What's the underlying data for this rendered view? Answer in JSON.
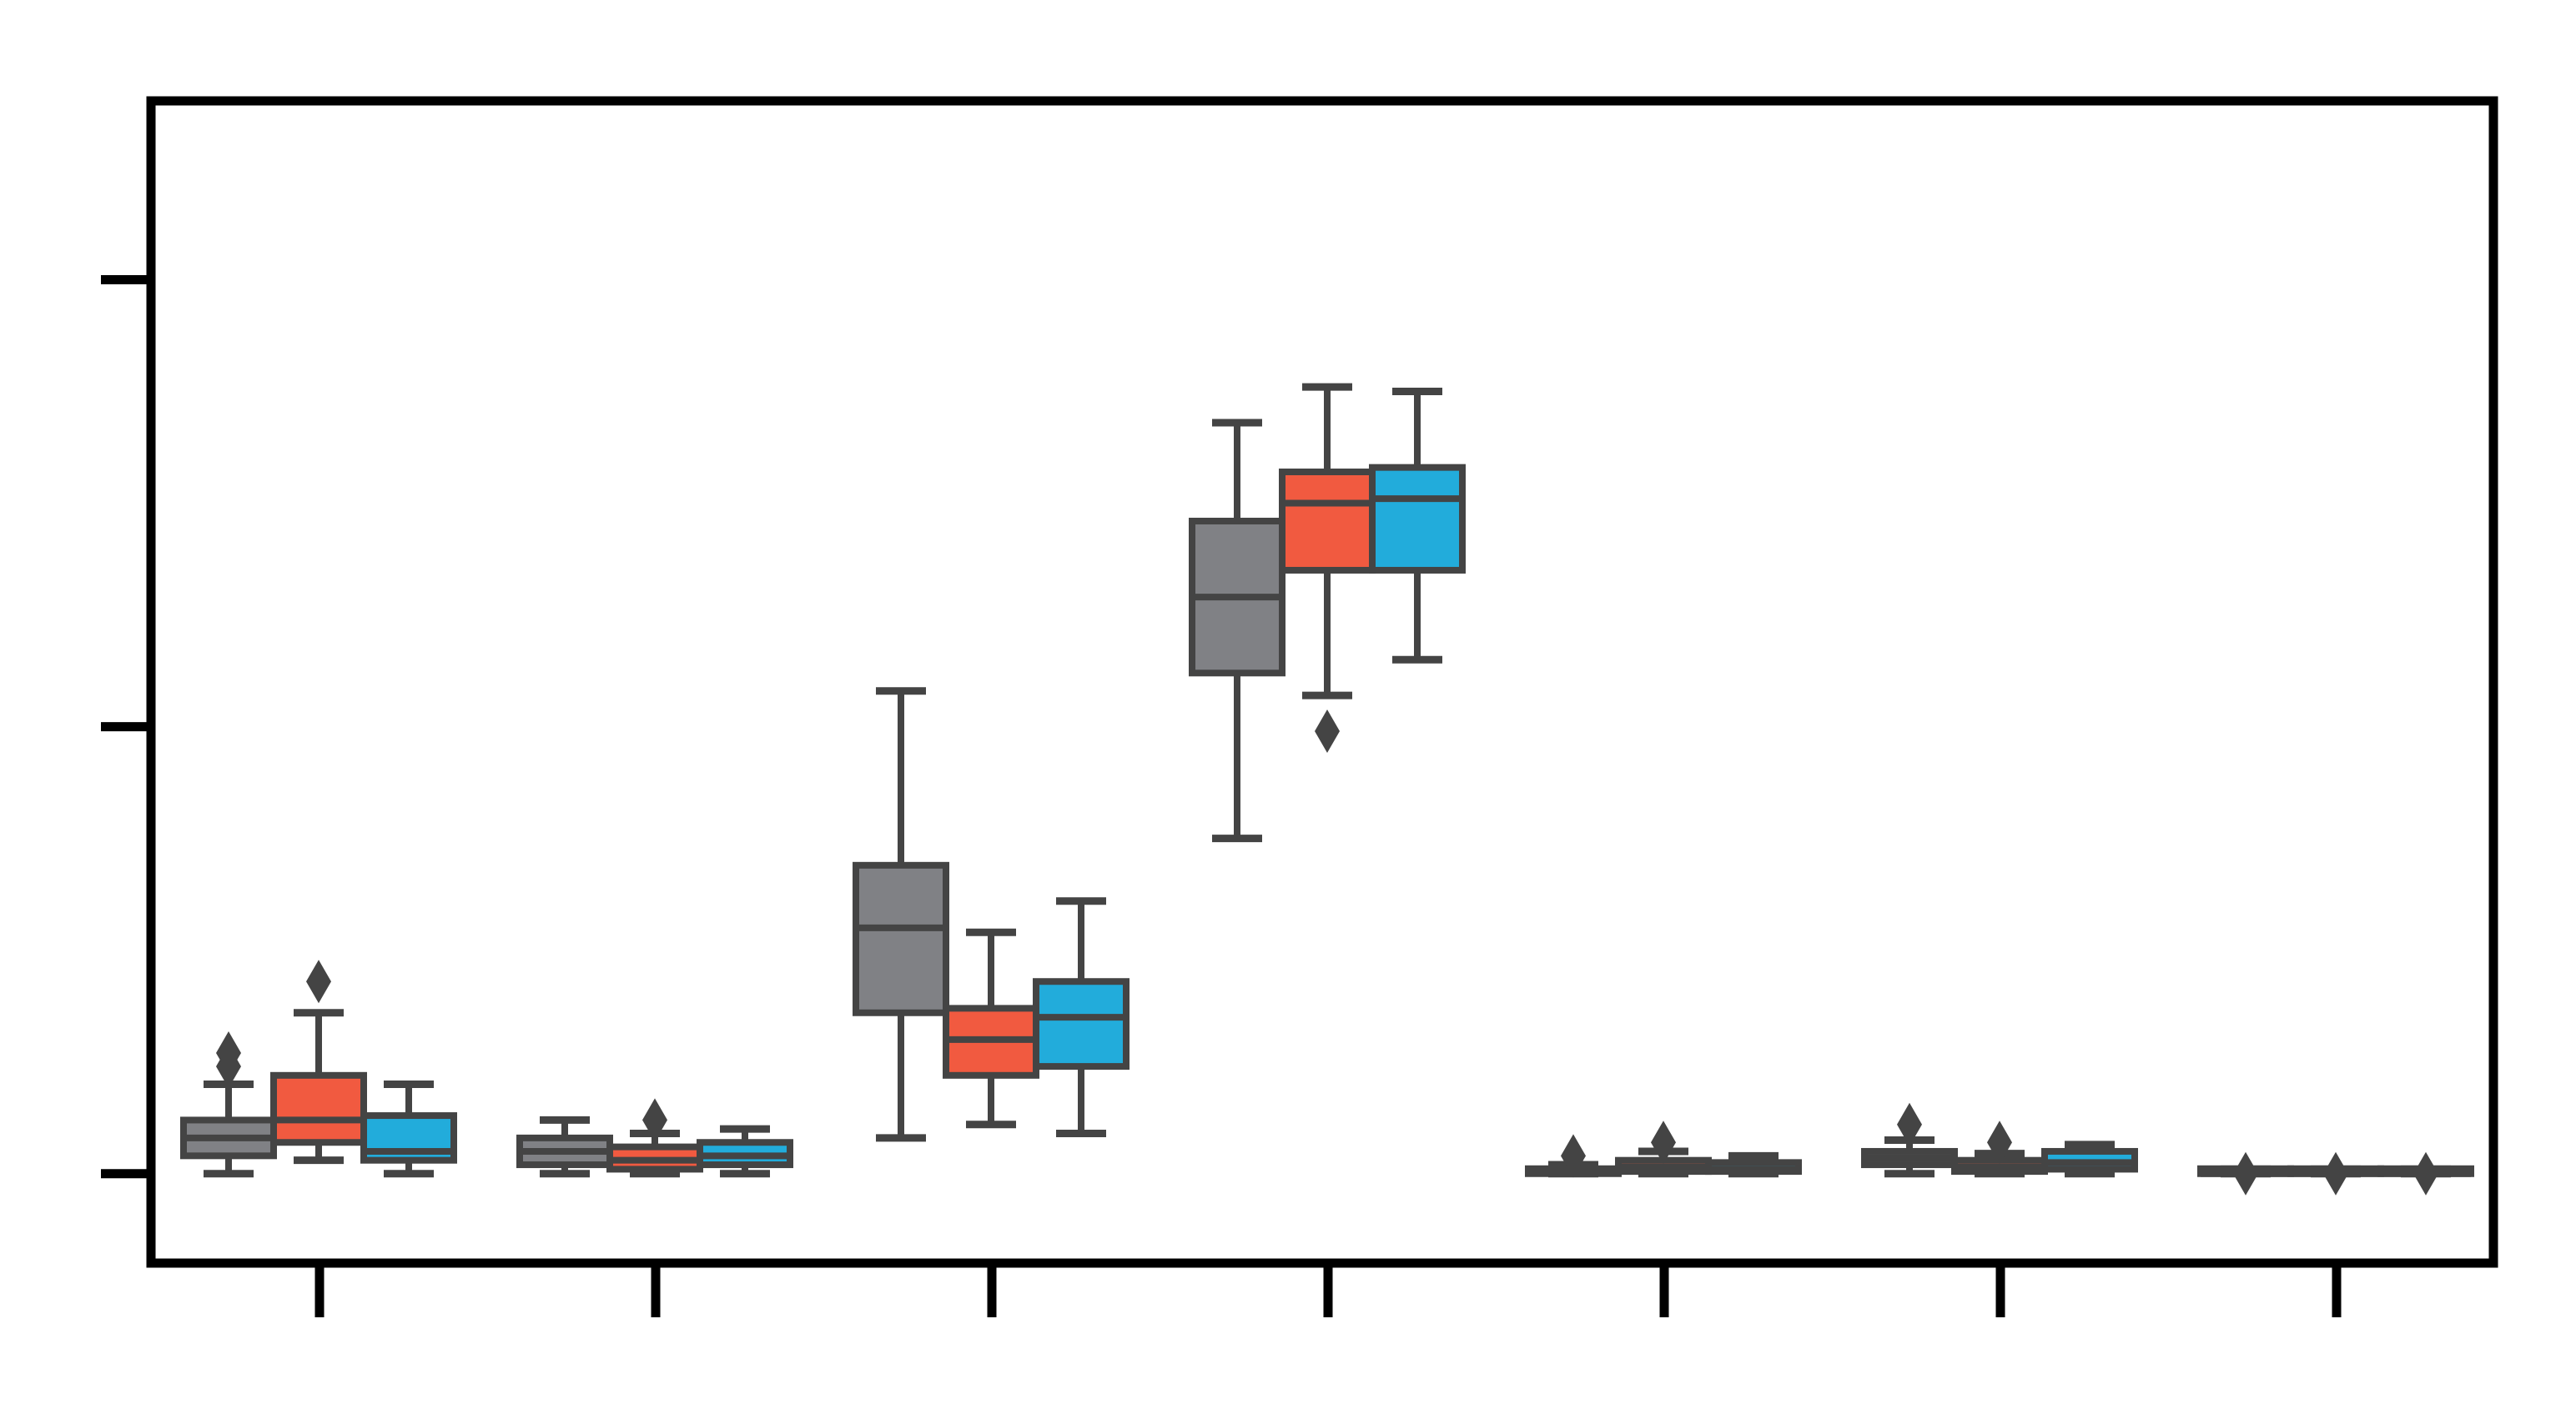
{
  "chart_data": {
    "type": "box",
    "title": "",
    "xlabel": "",
    "ylabel": "",
    "ylim": [
      -0.2,
      2.4
    ],
    "yticks": [
      0,
      1,
      2
    ],
    "grid": false,
    "legend": null,
    "category_count": 7,
    "series": [
      {
        "color": "#808185"
      },
      {
        "color": "#f15a40"
      },
      {
        "color": "#22acdb"
      }
    ],
    "boxes": [
      {
        "category": 0,
        "series": 0,
        "whisker_low": 0.0,
        "q1": 0.04,
        "median": 0.08,
        "q3": 0.12,
        "whisker_high": 0.2,
        "outliers": [
          0.24,
          0.27
        ]
      },
      {
        "category": 0,
        "series": 1,
        "whisker_low": 0.03,
        "q1": 0.07,
        "median": 0.12,
        "q3": 0.22,
        "whisker_high": 0.36,
        "outliers": [
          0.43
        ]
      },
      {
        "category": 0,
        "series": 2,
        "whisker_low": 0.0,
        "q1": 0.03,
        "median": 0.05,
        "q3": 0.13,
        "whisker_high": 0.2,
        "outliers": []
      },
      {
        "category": 1,
        "series": 0,
        "whisker_low": 0.0,
        "q1": 0.02,
        "median": 0.05,
        "q3": 0.08,
        "whisker_high": 0.12,
        "outliers": []
      },
      {
        "category": 1,
        "series": 1,
        "whisker_low": 0.0,
        "q1": 0.01,
        "median": 0.03,
        "q3": 0.06,
        "whisker_high": 0.09,
        "outliers": [
          0.12
        ]
      },
      {
        "category": 1,
        "series": 2,
        "whisker_low": 0.0,
        "q1": 0.02,
        "median": 0.04,
        "q3": 0.07,
        "whisker_high": 0.1,
        "outliers": []
      },
      {
        "category": 2,
        "series": 0,
        "whisker_low": 0.08,
        "q1": 0.36,
        "median": 0.55,
        "q3": 0.69,
        "whisker_high": 1.08,
        "outliers": []
      },
      {
        "category": 2,
        "series": 1,
        "whisker_low": 0.11,
        "q1": 0.22,
        "median": 0.3,
        "q3": 0.37,
        "whisker_high": 0.54,
        "outliers": []
      },
      {
        "category": 2,
        "series": 2,
        "whisker_low": 0.09,
        "q1": 0.24,
        "median": 0.35,
        "q3": 0.43,
        "whisker_high": 0.61,
        "outliers": []
      },
      {
        "category": 3,
        "series": 0,
        "whisker_low": 0.75,
        "q1": 1.12,
        "median": 1.29,
        "q3": 1.46,
        "whisker_high": 1.68,
        "outliers": []
      },
      {
        "category": 3,
        "series": 1,
        "whisker_low": 1.07,
        "q1": 1.35,
        "median": 1.5,
        "q3": 1.57,
        "whisker_high": 1.76,
        "outliers": [
          0.99
        ]
      },
      {
        "category": 3,
        "series": 2,
        "whisker_low": 1.15,
        "q1": 1.35,
        "median": 1.51,
        "q3": 1.58,
        "whisker_high": 1.75,
        "outliers": []
      },
      {
        "category": 4,
        "series": 0,
        "whisker_low": 0.0,
        "q1": 0.0,
        "median": 0.005,
        "q3": 0.01,
        "whisker_high": 0.02,
        "outliers": [
          0.04
        ]
      },
      {
        "category": 4,
        "series": 1,
        "whisker_low": 0.0,
        "q1": 0.005,
        "median": 0.015,
        "q3": 0.03,
        "whisker_high": 0.05,
        "outliers": [
          0.07
        ]
      },
      {
        "category": 4,
        "series": 2,
        "whisker_low": 0.0,
        "q1": 0.005,
        "median": 0.01,
        "q3": 0.025,
        "whisker_high": 0.04,
        "outliers": []
      },
      {
        "category": 5,
        "series": 0,
        "whisker_low": 0.0,
        "q1": 0.02,
        "median": 0.035,
        "q3": 0.05,
        "whisker_high": 0.075,
        "outliers": [
          0.11
        ]
      },
      {
        "category": 5,
        "series": 1,
        "whisker_low": 0.0,
        "q1": 0.005,
        "median": 0.015,
        "q3": 0.03,
        "whisker_high": 0.045,
        "outliers": [
          0.07
        ]
      },
      {
        "category": 5,
        "series": 2,
        "whisker_low": 0.0,
        "q1": 0.01,
        "median": 0.025,
        "q3": 0.05,
        "whisker_high": 0.065,
        "outliers": []
      },
      {
        "category": 6,
        "series": 0,
        "whisker_low": 0.0,
        "q1": 0.0,
        "median": 0.0,
        "q3": 0.005,
        "whisker_high": 0.01,
        "outliers": [
          0.0
        ]
      },
      {
        "category": 6,
        "series": 1,
        "whisker_low": 0.0,
        "q1": 0.0,
        "median": 0.0,
        "q3": 0.005,
        "whisker_high": 0.01,
        "outliers": [
          0.0
        ]
      },
      {
        "category": 6,
        "series": 2,
        "whisker_low": 0.0,
        "q1": 0.0,
        "median": 0.0,
        "q3": 0.005,
        "whisker_high": 0.01,
        "outliers": [
          0.0
        ]
      }
    ]
  }
}
